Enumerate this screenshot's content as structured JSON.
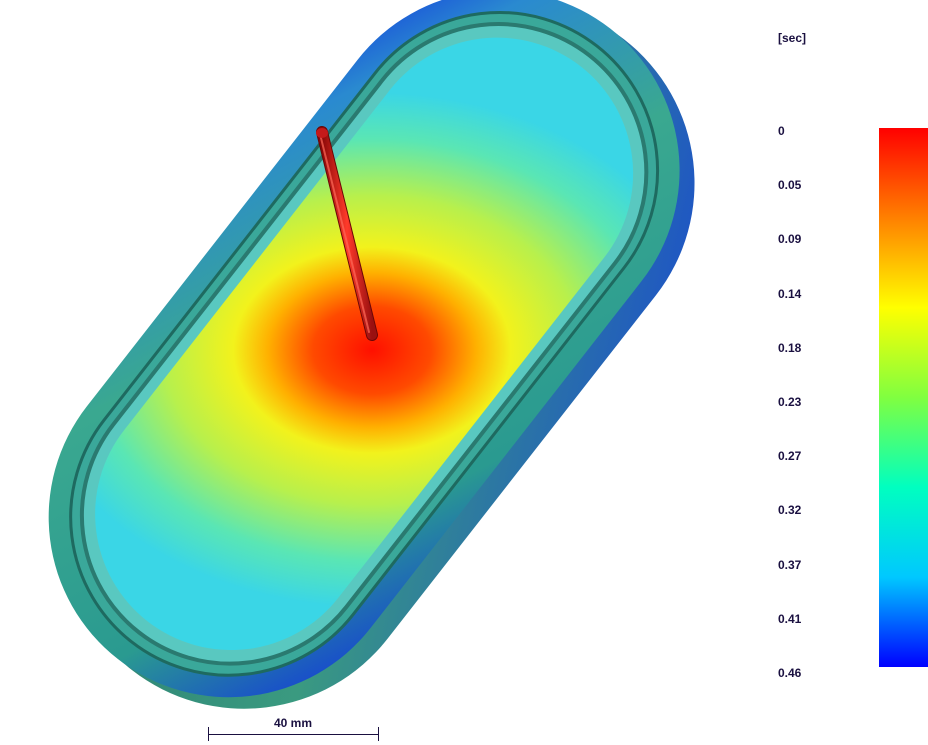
{
  "legend": {
    "unit": "[sec]",
    "ticks": [
      "0",
      "0.05",
      "0.09",
      "0.14",
      "0.18",
      "0.23",
      "0.27",
      "0.32",
      "0.37",
      "0.41",
      "0.46"
    ],
    "gradient_colors": [
      "#ff0000",
      "#ff8000",
      "#ffff00",
      "#80ff40",
      "#00ffc0",
      "#00c8ff",
      "#0000ff"
    ]
  },
  "scale_bar": {
    "label": "40 mm"
  },
  "colors": {
    "fill_center": "#ff1a00",
    "fill_mid": "#f0f020",
    "fill_outer": "#50e6c0",
    "rim_blue": "#1030e0",
    "rim_green": "#2a8a78",
    "gate": "#d42020"
  }
}
